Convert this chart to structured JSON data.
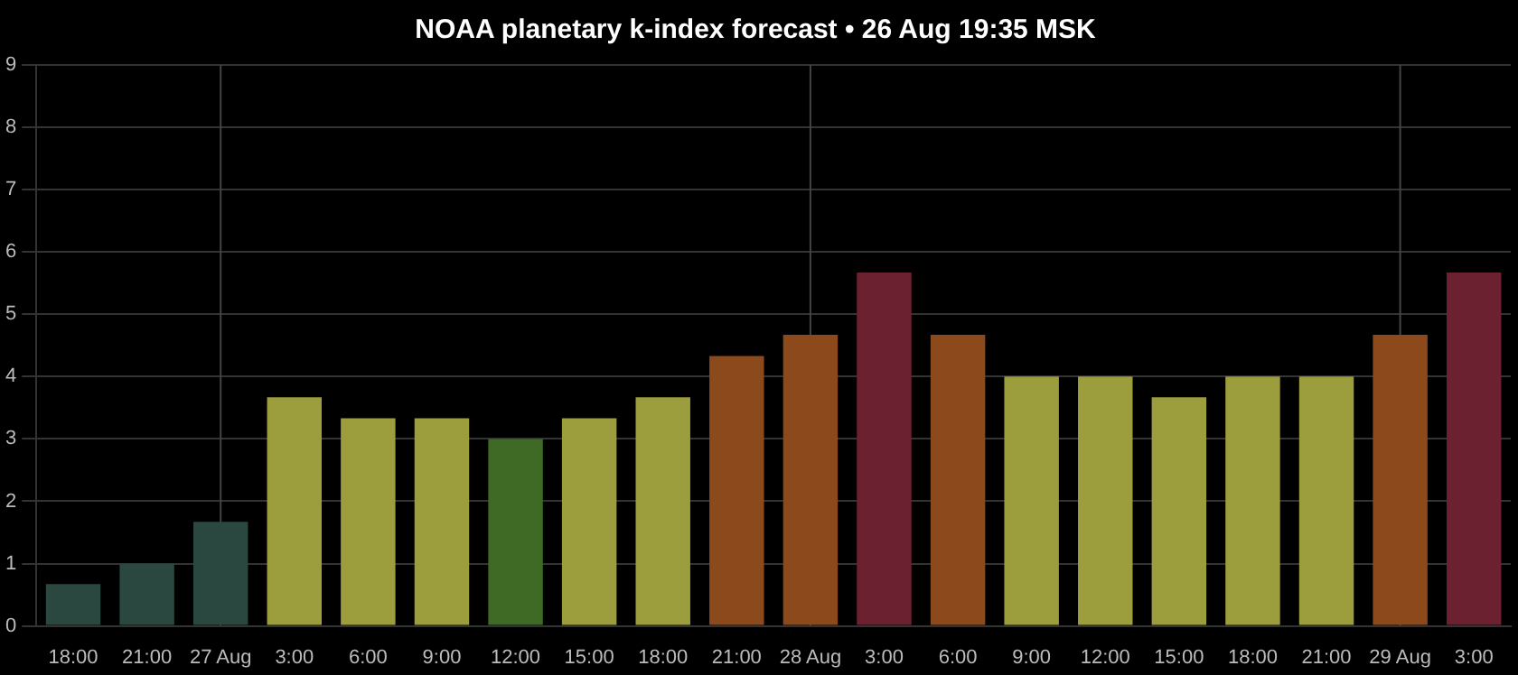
{
  "chart_data": {
    "type": "bar",
    "title": "NOAA planetary k-index forecast • 26 Aug 19:35 MSK",
    "categories": [
      "18:00",
      "21:00",
      "27 Aug",
      "3:00",
      "6:00",
      "9:00",
      "12:00",
      "15:00",
      "18:00",
      "21:00",
      "28 Aug",
      "3:00",
      "6:00",
      "9:00",
      "12:00",
      "15:00",
      "18:00",
      "21:00",
      "29 Aug",
      "3:00"
    ],
    "values": [
      0.67,
      1.0,
      1.67,
      3.67,
      3.33,
      3.33,
      3.0,
      3.33,
      3.67,
      4.33,
      4.67,
      5.67,
      4.67,
      4.0,
      4.0,
      3.67,
      4.0,
      4.0,
      4.67,
      5.67
    ],
    "colors": [
      "#2a4740",
      "#2a4740",
      "#2a4740",
      "#9c9d3c",
      "#9c9d3c",
      "#9c9d3c",
      "#3f6a26",
      "#9c9d3c",
      "#9c9d3c",
      "#8c4a1c",
      "#8c4a1c",
      "#6b2130",
      "#8c4a1c",
      "#9c9d3c",
      "#9c9d3c",
      "#9c9d3c",
      "#9c9d3c",
      "#9c9d3c",
      "#8c4a1c",
      "#6b2130"
    ],
    "ylim": [
      0,
      9
    ],
    "yticks": [
      0,
      1,
      2,
      3,
      4,
      5,
      6,
      7,
      8,
      9
    ],
    "grid": "y",
    "legend": false,
    "ref_lines": [
      {
        "axis": "x",
        "value": "27 Aug",
        "color": "#444444"
      },
      {
        "axis": "x",
        "value": "28 Aug",
        "color": "#444444"
      },
      {
        "axis": "x",
        "value": "29 Aug",
        "color": "#444444"
      }
    ]
  }
}
